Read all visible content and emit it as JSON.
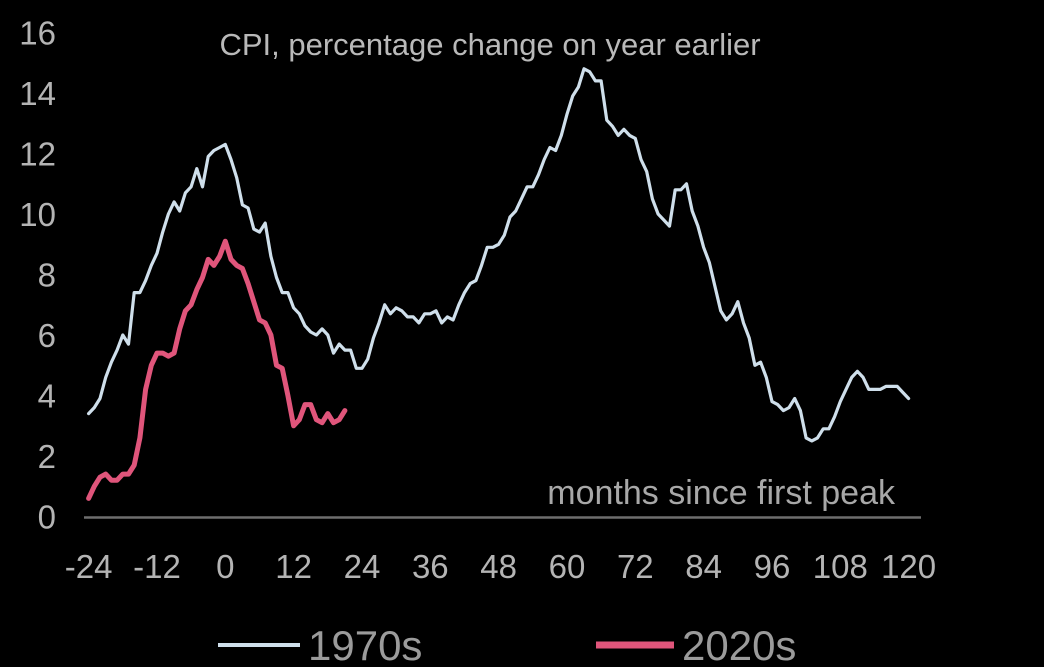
{
  "page": {
    "background": "#000000"
  },
  "chart_data": {
    "type": "line",
    "title": "CPI, percentage change on year earlier",
    "xlabel": "months since first peak",
    "ylabel": "",
    "xlim": [
      -24,
      120
    ],
    "ylim": [
      0,
      16
    ],
    "x_ticks": [
      -24,
      -12,
      0,
      12,
      24,
      36,
      48,
      60,
      72,
      84,
      96,
      108,
      120
    ],
    "y_ticks": [
      0,
      2,
      4,
      6,
      8,
      10,
      12,
      14,
      16
    ],
    "grid": false,
    "legend_position": "bottom",
    "axis_color": "#6e6e6e",
    "tick_text_color": "#b4b4b4",
    "series": [
      {
        "name": "1970s",
        "color": "#cfdfeb",
        "line_width": 3.2,
        "x_start": -24,
        "x_step": 1,
        "values": [
          3.4,
          3.6,
          3.9,
          4.6,
          5.1,
          5.5,
          6.0,
          5.7,
          7.4,
          7.4,
          7.8,
          8.3,
          8.7,
          9.4,
          10.0,
          10.4,
          10.1,
          10.7,
          10.9,
          11.5,
          10.9,
          11.9,
          12.1,
          12.2,
          12.3,
          11.8,
          11.2,
          10.3,
          10.2,
          9.5,
          9.4,
          9.7,
          8.6,
          7.9,
          7.4,
          7.4,
          6.9,
          6.7,
          6.3,
          6.1,
          6.0,
          6.2,
          6.0,
          5.4,
          5.7,
          5.5,
          5.5,
          4.9,
          4.9,
          5.2,
          5.9,
          6.4,
          7.0,
          6.7,
          6.9,
          6.8,
          6.6,
          6.6,
          6.4,
          6.7,
          6.7,
          6.8,
          6.4,
          6.6,
          6.5,
          7.0,
          7.4,
          7.7,
          7.8,
          8.3,
          8.9,
          8.9,
          9.0,
          9.3,
          9.9,
          10.1,
          10.5,
          10.9,
          10.9,
          11.3,
          11.8,
          12.2,
          12.1,
          12.6,
          13.3,
          13.9,
          14.2,
          14.8,
          14.7,
          14.4,
          14.4,
          13.1,
          12.9,
          12.6,
          12.8,
          12.6,
          12.5,
          11.8,
          11.4,
          10.5,
          10.0,
          9.8,
          9.6,
          10.8,
          10.8,
          11.0,
          10.1,
          9.6,
          8.9,
          8.4,
          7.6,
          6.8,
          6.5,
          6.7,
          7.1,
          6.4,
          5.9,
          5.0,
          5.1,
          4.6,
          3.8,
          3.7,
          3.5,
          3.6,
          3.9,
          3.5,
          2.6,
          2.5,
          2.6,
          2.9,
          2.9,
          3.3,
          3.8,
          4.2,
          4.6,
          4.8,
          4.6,
          4.2,
          4.2,
          4.2,
          4.3,
          4.3,
          4.3,
          4.1,
          3.9
        ]
      },
      {
        "name": "2020s",
        "color": "#e0557b",
        "line_width": 5,
        "x_start": -24,
        "x_step": 1,
        "values": [
          0.6,
          1.0,
          1.3,
          1.4,
          1.2,
          1.2,
          1.4,
          1.4,
          1.7,
          2.6,
          4.2,
          5.0,
          5.4,
          5.4,
          5.3,
          5.4,
          6.2,
          6.8,
          7.0,
          7.5,
          7.9,
          8.5,
          8.3,
          8.6,
          9.1,
          8.5,
          8.3,
          8.2,
          7.7,
          7.1,
          6.5,
          6.4,
          6.0,
          5.0,
          4.9,
          4.0,
          3.0,
          3.2,
          3.7,
          3.7,
          3.2,
          3.1,
          3.4,
          3.1,
          3.2,
          3.5
        ]
      }
    ]
  }
}
